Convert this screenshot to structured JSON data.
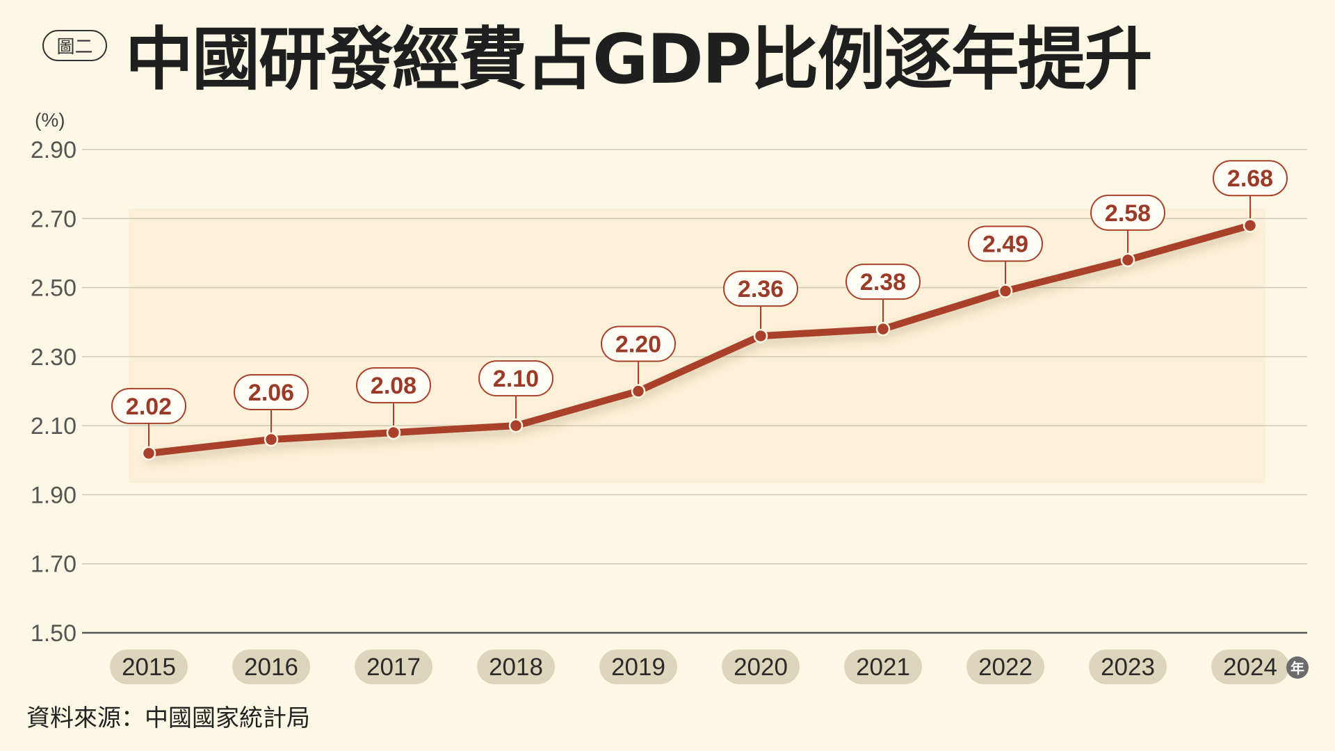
{
  "figure_label": "圖二",
  "title": "中國研發經費占GDP比例逐年提升",
  "source": "資料來源：中國國家統計局",
  "colors": {
    "background": "#fdf8e6",
    "line": "#a9402a",
    "label_text": "#9a3a28",
    "year_badge": "#dcd6bd",
    "grid": "#cfcab6"
  },
  "chart_data": {
    "type": "line",
    "title": "中國研發經費占GDP比例逐年提升",
    "ylabel": "(%)",
    "xlabel": "",
    "x_unit": "年",
    "categories": [
      "2015",
      "2016",
      "2017",
      "2018",
      "2019",
      "2020",
      "2021",
      "2022",
      "2023",
      "2024"
    ],
    "values": [
      2.02,
      2.06,
      2.08,
      2.1,
      2.2,
      2.36,
      2.38,
      2.49,
      2.58,
      2.68
    ],
    "value_labels": [
      "2.02",
      "2.06",
      "2.08",
      "2.10",
      "2.20",
      "2.36",
      "2.38",
      "2.49",
      "2.58",
      "2.68"
    ],
    "ylim": [
      1.5,
      2.9
    ],
    "yticks": [
      "1.50",
      "1.70",
      "1.90",
      "2.10",
      "2.30",
      "2.50",
      "2.70",
      "2.90"
    ],
    "ytick_values": [
      1.5,
      1.7,
      1.9,
      2.1,
      2.3,
      2.5,
      2.7,
      2.9
    ],
    "grid": true
  }
}
